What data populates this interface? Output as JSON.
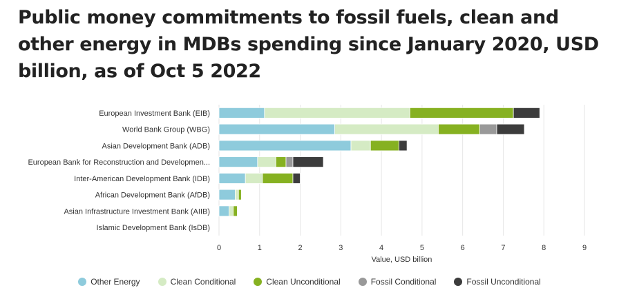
{
  "chart_data": {
    "type": "bar",
    "orientation": "horizontal",
    "stacked": true,
    "title": "Public money commitments to fossil fuels, clean and other energy in MDBs spending since January 2020, USD billion, as of Oct 5 2022",
    "xlabel": "Value, USD billion",
    "ylabel": "",
    "xlim": [
      0,
      9
    ],
    "xticks": [
      "0",
      "1",
      "2",
      "3",
      "4",
      "5",
      "6",
      "7",
      "8",
      "9"
    ],
    "grid": true,
    "legend_position": "bottom",
    "categories": [
      "European Investment Bank (EIB)",
      "World Bank Group (WBG)",
      "Asian Development Bank (ADB)",
      "European Bank for Reconstruction and Developmen...",
      "Inter-American Development Bank (IDB)",
      "African Development Bank (AfDB)",
      "Asian Infrastructure Investment Bank (AIIB)",
      "Islamic Development Bank (IsDB)"
    ],
    "series": [
      {
        "name": "Other Energy",
        "color": "#8ecbdc",
        "values": [
          1.12,
          2.85,
          3.25,
          0.95,
          0.65,
          0.4,
          0.25,
          0
        ]
      },
      {
        "name": "Clean Conditional",
        "color": "#d5ebc4",
        "values": [
          3.58,
          2.55,
          0.48,
          0.45,
          0.42,
          0.08,
          0.1,
          0
        ]
      },
      {
        "name": "Clean Unconditional",
        "color": "#86b121",
        "values": [
          2.55,
          1.02,
          0.7,
          0.25,
          0.75,
          0.07,
          0.1,
          0
        ]
      },
      {
        "name": "Fossil Conditional",
        "color": "#999999",
        "values": [
          0,
          0.42,
          0,
          0.17,
          0,
          0,
          0,
          0
        ]
      },
      {
        "name": "Fossil Unconditional",
        "color": "#3c3c3c",
        "values": [
          0.65,
          0.68,
          0.2,
          0.75,
          0.18,
          0,
          0,
          0
        ]
      }
    ]
  }
}
